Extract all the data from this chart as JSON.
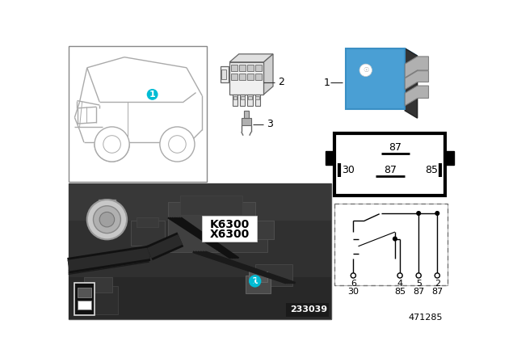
{
  "bg_color": "#ffffff",
  "part_number": "471285",
  "photo_number": "233039",
  "teal_color": "#00bcd4",
  "relay_blue": "#4a9fd4",
  "relay_blue_dark": "#3a8fc4",
  "relay_gray": "#8a8a8a",
  "car_line_color": "#aaaaaa",
  "connector_line_color": "#666666",
  "label1": "1",
  "label2": "2",
  "label3": "3",
  "k6300": "K6300",
  "x6300": "X6300",
  "pin_top": "87",
  "pins_mid": [
    "30",
    "87",
    "85"
  ],
  "circuit_pins": [
    "6",
    "4",
    "5",
    "2"
  ],
  "circuit_funcs": [
    "30",
    "85",
    "87",
    "87"
  ]
}
